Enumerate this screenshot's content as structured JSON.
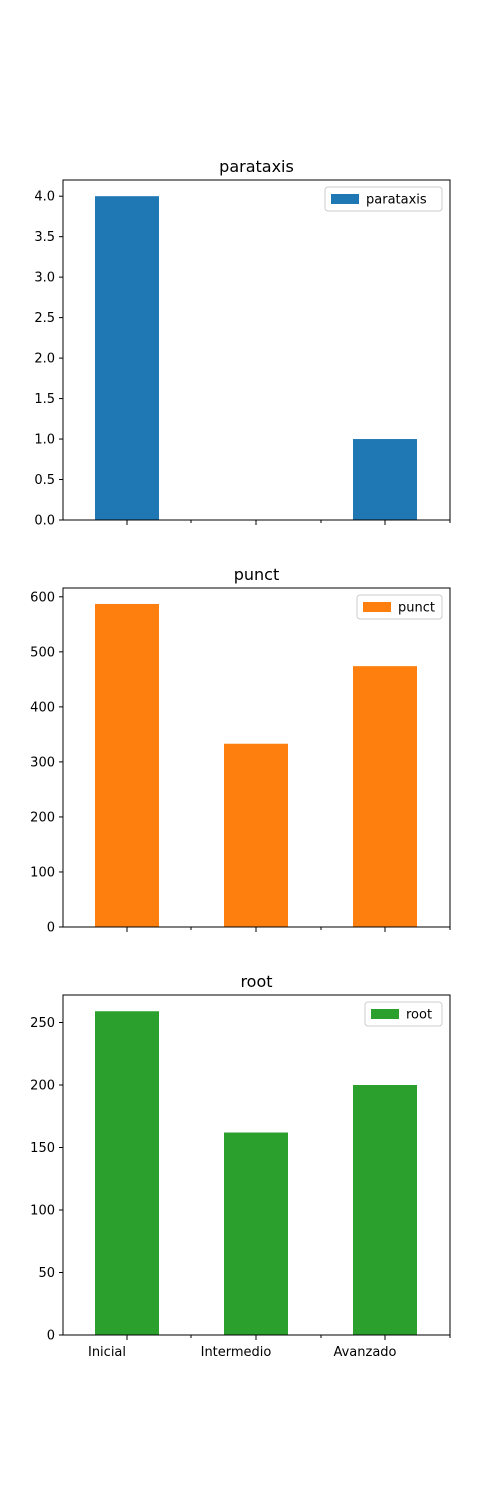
{
  "chart_data": [
    {
      "type": "bar",
      "title": "parataxis",
      "categories": [
        "Inicial",
        "Intermedio",
        "Avanzado"
      ],
      "values": [
        4,
        0,
        1
      ],
      "ylim": [
        0,
        4.2
      ],
      "yticks": [
        "0.0",
        "0.5",
        "1.0",
        "1.5",
        "2.0",
        "2.5",
        "3.0",
        "3.5",
        "4.0"
      ],
      "ytick_values": [
        0,
        0.5,
        1,
        1.5,
        2,
        2.5,
        3,
        3.5,
        4
      ],
      "legend": "parataxis",
      "legend_position": "top-right",
      "color": "#1f77b4",
      "show_xticklabels": false,
      "xlabel": "",
      "ylabel": ""
    },
    {
      "type": "bar",
      "title": "punct",
      "categories": [
        "Inicial",
        "Intermedio",
        "Avanzado"
      ],
      "values": [
        587,
        333,
        474
      ],
      "ylim": [
        0,
        616
      ],
      "yticks": [
        "0",
        "100",
        "200",
        "300",
        "400",
        "500",
        "600"
      ],
      "ytick_values": [
        0,
        100,
        200,
        300,
        400,
        500,
        600
      ],
      "legend": "punct",
      "legend_position": "top-right",
      "color": "#ff7f0e",
      "show_xticklabels": false,
      "xlabel": "",
      "ylabel": ""
    },
    {
      "type": "bar",
      "title": "root",
      "categories": [
        "Inicial",
        "Intermedio",
        "Avanzado"
      ],
      "values": [
        259,
        162,
        200
      ],
      "ylim": [
        0,
        272
      ],
      "yticks": [
        "0",
        "50",
        "100",
        "150",
        "200",
        "250"
      ],
      "ytick_values": [
        0,
        50,
        100,
        150,
        200,
        250
      ],
      "legend": "root",
      "legend_position": "top-right",
      "color": "#2ca02c",
      "show_xticklabels": true,
      "xlabel": "",
      "ylabel": ""
    }
  ]
}
